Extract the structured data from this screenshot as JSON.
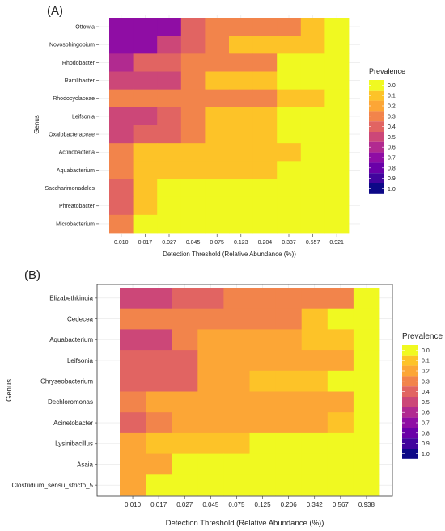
{
  "chart_data": [
    {
      "type": "heatmap",
      "panel_label": "(A)",
      "xlabel": "Detection Threshold (Relative Abundance (%))",
      "ylabel": "Genus",
      "x": [
        "0.010",
        "0.017",
        "0.027",
        "0.045",
        "0.075",
        "0.123",
        "0.204",
        "0.337",
        "0.557",
        "0.921"
      ],
      "y": [
        "Ottowia",
        "Novosphingobium",
        "Rhodobacter",
        "Ramlibacter",
        "Rhodocyclaceae",
        "Leifsonia",
        "Oxalobacteraceae",
        "Actinobacteria",
        "Aquabacterium",
        "Saccharimonadales",
        "Phreatobacter",
        "Microbacterium"
      ],
      "values": [
        [
          0.7,
          0.7,
          0.7,
          0.4,
          0.3,
          0.3,
          0.3,
          0.3,
          0.1,
          0.0
        ],
        [
          0.7,
          0.7,
          0.5,
          0.4,
          0.3,
          0.1,
          0.1,
          0.1,
          0.1,
          0.0
        ],
        [
          0.6,
          0.4,
          0.4,
          0.3,
          0.3,
          0.3,
          0.3,
          0.0,
          0.0,
          0.0
        ],
        [
          0.5,
          0.5,
          0.5,
          0.3,
          0.1,
          0.1,
          0.1,
          0.0,
          0.0,
          0.0
        ],
        [
          0.3,
          0.3,
          0.3,
          0.3,
          0.3,
          0.3,
          0.3,
          0.1,
          0.1,
          0.0
        ],
        [
          0.5,
          0.5,
          0.4,
          0.3,
          0.1,
          0.1,
          0.1,
          0.0,
          0.0,
          0.0
        ],
        [
          0.5,
          0.4,
          0.4,
          0.3,
          0.1,
          0.1,
          0.1,
          0.0,
          0.0,
          0.0
        ],
        [
          0.3,
          0.1,
          0.1,
          0.1,
          0.1,
          0.1,
          0.1,
          0.1,
          0.0,
          0.0
        ],
        [
          0.3,
          0.1,
          0.1,
          0.1,
          0.1,
          0.1,
          0.1,
          0.0,
          0.0,
          0.0
        ],
        [
          0.4,
          0.1,
          0.0,
          0.0,
          0.0,
          0.0,
          0.0,
          0.0,
          0.0,
          0.0
        ],
        [
          0.4,
          0.1,
          0.0,
          0.0,
          0.0,
          0.0,
          0.0,
          0.0,
          0.0,
          0.0
        ],
        [
          0.3,
          0.0,
          0.0,
          0.0,
          0.0,
          0.0,
          0.0,
          0.0,
          0.0,
          0.0
        ]
      ],
      "legend": {
        "title": "Prevalence",
        "labels": [
          "0.0",
          "0.1",
          "0.2",
          "0.3",
          "0.4",
          "0.5",
          "0.6",
          "0.7",
          "0.8",
          "0.9",
          "1.0"
        ],
        "colors": [
          "#f0f921",
          "#fdc328",
          "#fca636",
          "#f2844b",
          "#e16462",
          "#cc4778",
          "#b12a90",
          "#8f0da4",
          "#6a00a8",
          "#41049d",
          "#0d0887"
        ],
        "placement": "right"
      },
      "grid": true
    },
    {
      "type": "heatmap",
      "panel_label": "(B)",
      "xlabel": "Detection Threshold (Relative Abundance (%))",
      "ylabel": "Genus",
      "x": [
        "0.010",
        "0.017",
        "0.027",
        "0.045",
        "0.075",
        "0.125",
        "0.206",
        "0.342",
        "0.567",
        "0.938"
      ],
      "y": [
        "Elizabethkingia",
        "Cedecea",
        "Aquabacterium",
        "Leifsonia",
        "Chryseobacterium",
        "Dechloromonas",
        "Acinetobacter",
        "Lysinibacillus",
        "Asaia",
        "Clostridium_sensu_stricto_5"
      ],
      "values": [
        [
          0.5,
          0.5,
          0.4,
          0.4,
          0.3,
          0.3,
          0.3,
          0.3,
          0.3,
          0.0
        ],
        [
          0.3,
          0.3,
          0.3,
          0.3,
          0.3,
          0.3,
          0.3,
          0.1,
          0.0,
          0.0
        ],
        [
          0.5,
          0.5,
          0.3,
          0.2,
          0.2,
          0.2,
          0.2,
          0.1,
          0.1,
          0.0
        ],
        [
          0.4,
          0.4,
          0.4,
          0.2,
          0.2,
          0.2,
          0.2,
          0.2,
          0.2,
          0.0
        ],
        [
          0.4,
          0.4,
          0.4,
          0.2,
          0.2,
          0.1,
          0.1,
          0.1,
          0.0,
          0.0
        ],
        [
          0.3,
          0.2,
          0.2,
          0.2,
          0.2,
          0.2,
          0.2,
          0.2,
          0.2,
          0.0
        ],
        [
          0.4,
          0.3,
          0.2,
          0.2,
          0.2,
          0.2,
          0.2,
          0.2,
          0.1,
          0.0
        ],
        [
          0.2,
          0.1,
          0.1,
          0.1,
          0.1,
          0.0,
          0.0,
          0.0,
          0.0,
          0.0
        ],
        [
          0.2,
          0.2,
          0.0,
          0.0,
          0.0,
          0.0,
          0.0,
          0.0,
          0.0,
          0.0
        ],
        [
          0.2,
          0.0,
          0.0,
          0.0,
          0.0,
          0.0,
          0.0,
          0.0,
          0.0,
          0.0
        ]
      ],
      "legend": {
        "title": "Prevalence",
        "labels": [
          "0.0",
          "0.1",
          "0.2",
          "0.3",
          "0.4",
          "0.5",
          "0.6",
          "0.7",
          "0.8",
          "0.9",
          "1.0"
        ],
        "colors": [
          "#f0f921",
          "#fdc328",
          "#fca636",
          "#f2844b",
          "#e16462",
          "#cc4778",
          "#b12a90",
          "#8f0da4",
          "#6a00a8",
          "#41049d",
          "#0d0887"
        ],
        "placement": "right"
      },
      "grid": true
    }
  ]
}
